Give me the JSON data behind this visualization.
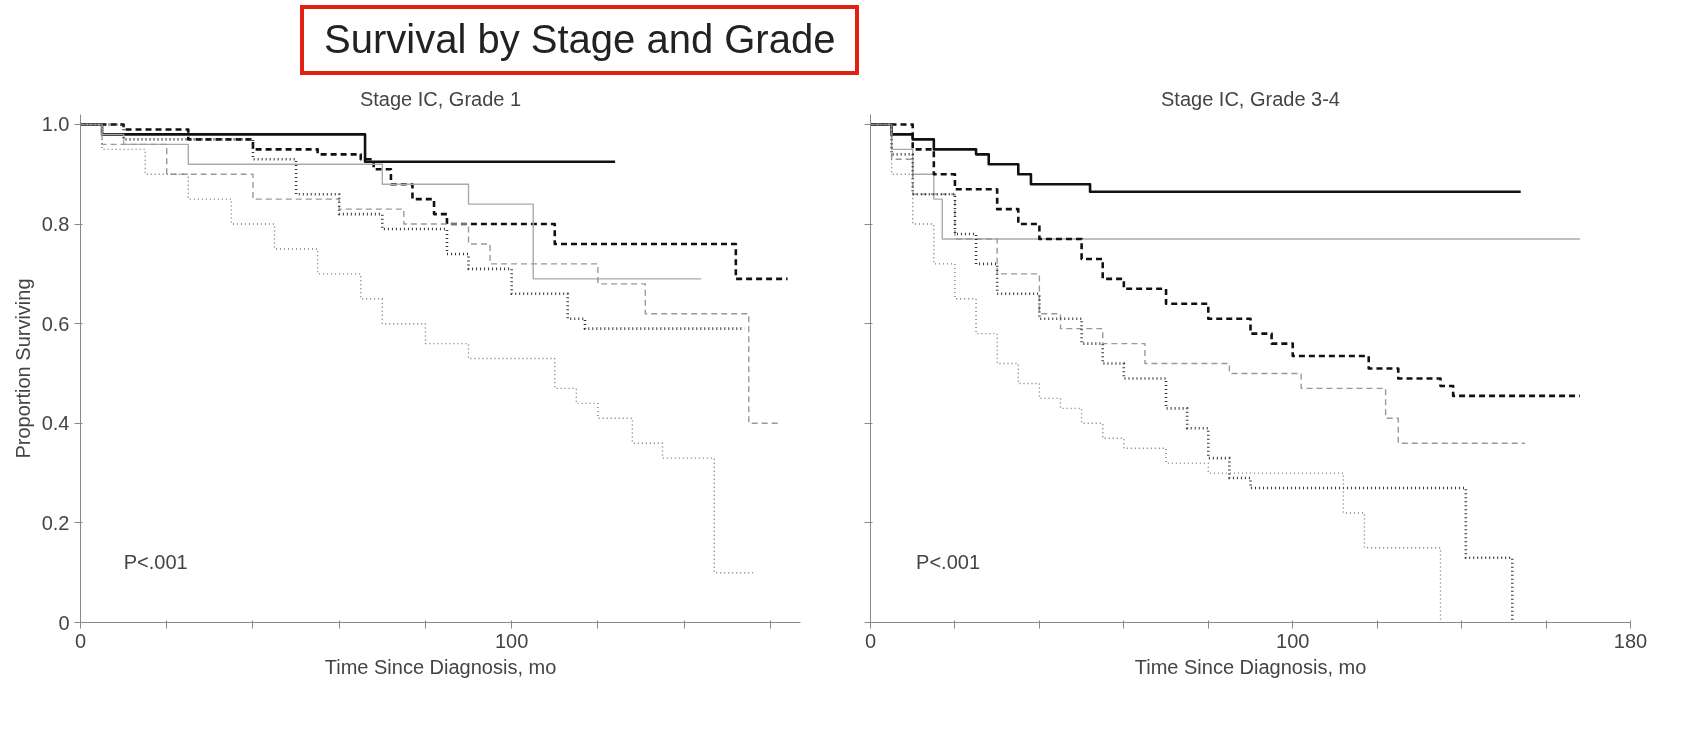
{
  "chart_data": [
    {
      "type": "step",
      "title": "Stage IC, Grade 1",
      "xlabel": "Time Since Diagnosis, mo",
      "ylabel": "Proportion Surviving",
      "annotations": [
        "P<.001",
        "Survival by Stage and Grade"
      ],
      "xlim": [
        0,
        167
      ],
      "xticks": [
        0,
        {
          "value": 20,
          "label": null
        },
        {
          "value": 40,
          "label": null
        },
        {
          "value": 60,
          "label": null
        },
        {
          "value": 80,
          "label": null
        },
        100,
        {
          "value": 120,
          "label": null
        },
        {
          "value": 140,
          "label": null
        },
        {
          "value": 160,
          "label": null
        }
      ],
      "ylim": [
        0,
        1.02
      ],
      "yticks": [
        0,
        0.2,
        0.4,
        0.6,
        0.8,
        {
          "value": 1,
          "label": "1.0"
        }
      ],
      "series": [
        {
          "color": "#111111",
          "line_style": "solid",
          "x": [
            0,
            5,
            66,
            124
          ],
          "values": [
            1.0,
            0.98,
            0.925,
            0.925
          ]
        },
        {
          "color": "#111111",
          "line_style": "dashed",
          "x": [
            0,
            10,
            25,
            40,
            55,
            65,
            68,
            72,
            77,
            82,
            85,
            110,
            152,
            164
          ],
          "values": [
            1.0,
            0.99,
            0.97,
            0.95,
            0.94,
            0.93,
            0.91,
            0.88,
            0.85,
            0.82,
            0.8,
            0.76,
            0.69,
            0.69
          ]
        },
        {
          "color": "#aaaaaa",
          "line_style": "solid",
          "x": [
            0,
            5,
            10,
            25,
            60,
            70,
            90,
            105,
            144
          ],
          "values": [
            1.0,
            0.98,
            0.96,
            0.92,
            0.92,
            0.88,
            0.84,
            0.69,
            0.69
          ]
        },
        {
          "color": "#999999",
          "line_style": "dashed",
          "x": [
            0,
            5,
            20,
            40,
            60,
            75,
            90,
            95,
            120,
            131,
            155,
            162
          ],
          "values": [
            1.0,
            0.96,
            0.9,
            0.85,
            0.83,
            0.8,
            0.76,
            0.72,
            0.68,
            0.62,
            0.4,
            0.4
          ]
        },
        {
          "color": "#333333",
          "line_style": "dotted",
          "x": [
            0,
            10,
            40,
            50,
            60,
            70,
            85,
            90,
            100,
            113,
            117,
            154
          ],
          "values": [
            1.0,
            0.97,
            0.93,
            0.86,
            0.82,
            0.79,
            0.74,
            0.71,
            0.66,
            0.61,
            0.59,
            0.59
          ]
        },
        {
          "color": "#777777",
          "line_style": "dotted",
          "x": [
            0,
            5,
            15,
            25,
            35,
            45,
            55,
            65,
            70,
            80,
            90,
            105,
            110,
            115,
            120,
            128,
            135,
            147,
            156
          ],
          "values": [
            1.0,
            0.95,
            0.9,
            0.85,
            0.8,
            0.75,
            0.7,
            0.65,
            0.6,
            0.56,
            0.53,
            0.53,
            0.47,
            0.44,
            0.41,
            0.36,
            0.33,
            0.1,
            0.1
          ]
        }
      ]
    },
    {
      "type": "step",
      "title": "Stage IC, Grade 3-4",
      "xlabel": "Time Since Diagnosis, mo",
      "annotations": [
        "P<.001"
      ],
      "tick_labels": "x",
      "xlim": [
        0,
        180
      ],
      "xticks": [
        0,
        {
          "value": 20,
          "label": null
        },
        {
          "value": 40,
          "label": null
        },
        {
          "value": 60,
          "label": null
        },
        {
          "value": 80,
          "label": null
        },
        100,
        {
          "value": 120,
          "label": null
        },
        {
          "value": 140,
          "label": null
        },
        {
          "value": 160,
          "label": null
        },
        180
      ],
      "ylim": [
        0,
        1.02
      ],
      "yticks": [
        0,
        0.2,
        0.4,
        0.6,
        0.8,
        1
      ],
      "series": [
        {
          "color": "#111111",
          "line_style": "solid",
          "x": [
            0,
            5,
            10,
            15,
            25,
            28,
            35,
            38,
            52,
            154
          ],
          "values": [
            1.0,
            0.98,
            0.97,
            0.95,
            0.94,
            0.92,
            0.9,
            0.88,
            0.865,
            0.865
          ]
        },
        {
          "color": "#aaaaaa",
          "line_style": "solid",
          "x": [
            0,
            5,
            10,
            15,
            17,
            168
          ],
          "values": [
            1.0,
            0.95,
            0.9,
            0.85,
            0.77,
            0.77
          ]
        },
        {
          "color": "#111111",
          "line_style": "dashed",
          "x": [
            0,
            10,
            15,
            20,
            30,
            35,
            40,
            50,
            55,
            60,
            70,
            80,
            90,
            95,
            100,
            118,
            125,
            135,
            138,
            168
          ],
          "values": [
            1.0,
            0.95,
            0.9,
            0.87,
            0.83,
            0.8,
            0.77,
            0.73,
            0.69,
            0.67,
            0.64,
            0.61,
            0.58,
            0.56,
            0.535,
            0.51,
            0.49,
            0.475,
            0.455,
            0.455
          ]
        },
        {
          "color": "#999999",
          "line_style": "dashed",
          "x": [
            0,
            5,
            10,
            20,
            30,
            40,
            45,
            55,
            65,
            85,
            102,
            122,
            125,
            155
          ],
          "values": [
            1.0,
            0.93,
            0.86,
            0.77,
            0.7,
            0.62,
            0.59,
            0.56,
            0.52,
            0.5,
            0.47,
            0.41,
            0.36,
            0.36
          ]
        },
        {
          "color": "#333333",
          "line_style": "dotted",
          "x": [
            0,
            5,
            10,
            20,
            25,
            30,
            40,
            50,
            55,
            60,
            70,
            75,
            80,
            85,
            90,
            141,
            152
          ],
          "values": [
            1.0,
            0.94,
            0.86,
            0.78,
            0.72,
            0.66,
            0.61,
            0.56,
            0.52,
            0.49,
            0.43,
            0.39,
            0.33,
            0.29,
            0.27,
            0.13,
            0.0
          ]
        },
        {
          "color": "#777777",
          "line_style": "dotted",
          "x": [
            0,
            5,
            10,
            15,
            20,
            25,
            30,
            35,
            40,
            45,
            50,
            55,
            60,
            70,
            80,
            112,
            117,
            135
          ],
          "values": [
            1.0,
            0.9,
            0.8,
            0.72,
            0.65,
            0.58,
            0.52,
            0.48,
            0.45,
            0.43,
            0.4,
            0.37,
            0.35,
            0.32,
            0.3,
            0.22,
            0.15,
            0.0
          ]
        }
      ]
    }
  ]
}
